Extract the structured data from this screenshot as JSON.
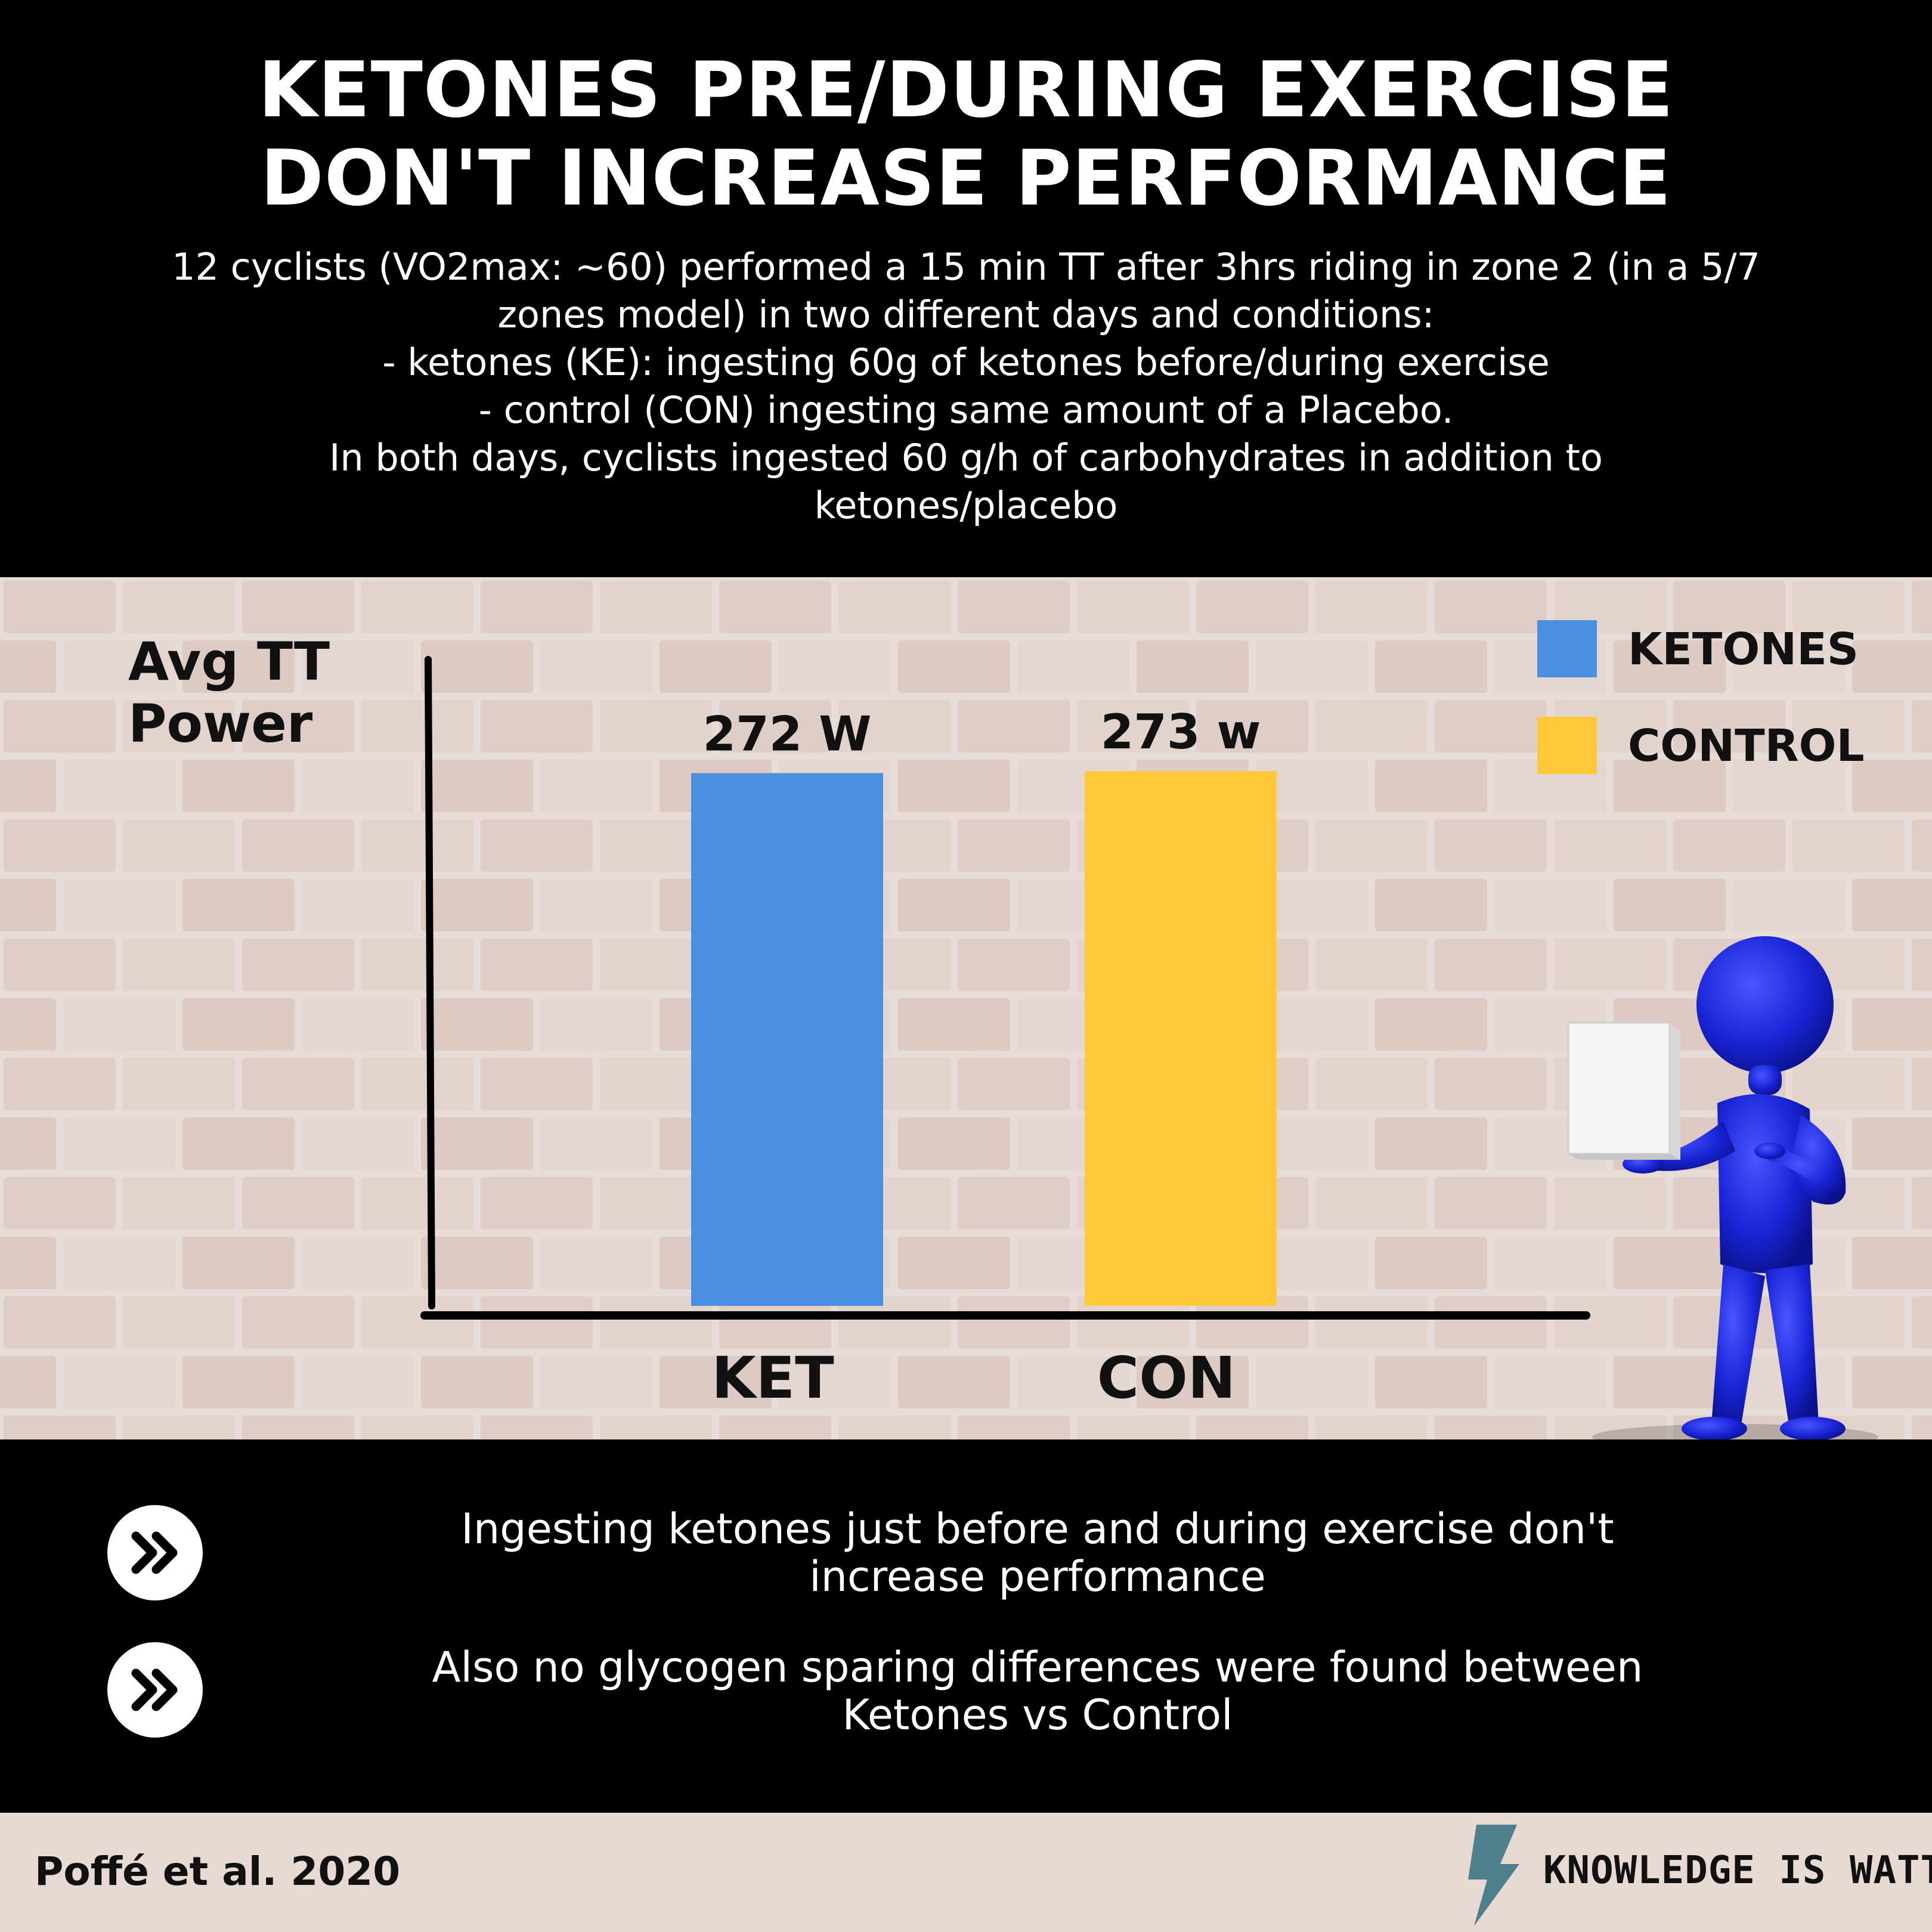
{
  "header": {
    "title_lines": [
      "KETONES PRE/DURING EXERCISE",
      "DON'T INCREASE PERFORMANCE"
    ],
    "description_lines": [
      "12 cyclists (VO2max: ~60) performed a 15 min TT after 3hrs riding in zone 2 (in a 5/7",
      "zones model) in two different days and conditions:",
      "- ketones (KE): ingesting 60g of ketones before/during exercise",
      "- control (CON)  ingesting same amount of a Placebo.",
      "In both days, cyclists ingested 60 g/h of carbohydrates in addition to",
      "ketones/placebo"
    ]
  },
  "chart_data": {
    "type": "bar",
    "categories": [
      "KET",
      "CON"
    ],
    "values": [
      272,
      273
    ],
    "data_labels": [
      "272 W",
      "273 w"
    ],
    "series_colors": [
      "#4a8fe0",
      "#ffc93a"
    ],
    "ylabel_lines": [
      "Avg TT",
      "Power"
    ],
    "title": "",
    "xlabel": "",
    "ylim": [
      0,
      330
    ],
    "grid": false,
    "legend": {
      "placement": "top-right",
      "entries": [
        {
          "label": "KETONES",
          "color": "#4a8fe0"
        },
        {
          "label": "CONTROL",
          "color": "#ffc93a"
        }
      ]
    }
  },
  "takeaways": [
    {
      "icon": "double-chevron-right-icon",
      "lines": [
        "Ingesting ketones just before and during exercise don't",
        "increase performance"
      ]
    },
    {
      "icon": "double-chevron-right-icon",
      "lines": [
        "Also no glycogen sparing differences were found between",
        "Ketones vs Control"
      ]
    }
  ],
  "footer": {
    "citation": "Poffé et al. 2020",
    "brand": "KNOWLEDGE IS WATT",
    "brand_icon": "lightning-bolt-icon",
    "brand_icon_color": "#4d7f8c"
  },
  "colors": {
    "header_bg": "#000000",
    "figure_blue": "#1a25d8"
  }
}
